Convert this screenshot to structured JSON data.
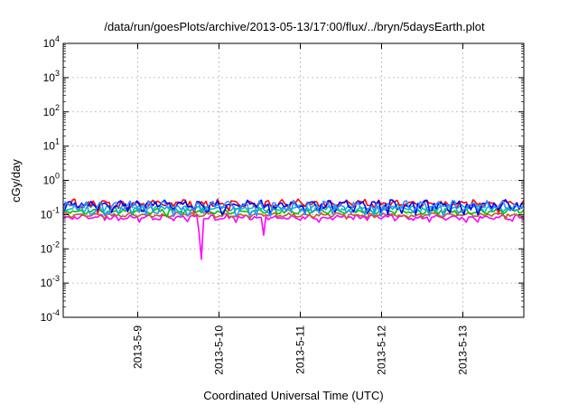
{
  "chart_data": {
    "type": "line",
    "title": "/data/run/goesPlots/archive/2013-05-13/17:00/flux/../bryn/5daysEarth.plot",
    "xlabel": "Coordinated Universal Time (UTC)",
    "ylabel": "cGy/day",
    "y_scale": "log",
    "ylim": [
      0.0001,
      10000
    ],
    "y_ticks": [
      {
        "value": 0.0001,
        "base": "10",
        "exp": "-4"
      },
      {
        "value": 0.001,
        "base": "10",
        "exp": "-3"
      },
      {
        "value": 0.01,
        "base": "10",
        "exp": "-2"
      },
      {
        "value": 0.1,
        "base": "10",
        "exp": "-1"
      },
      {
        "value": 1,
        "base": "10",
        "exp": "0"
      },
      {
        "value": 10,
        "base": "10",
        "exp": "1"
      },
      {
        "value": 100,
        "base": "10",
        "exp": "2"
      },
      {
        "value": 1000,
        "base": "10",
        "exp": "3"
      },
      {
        "value": 10000,
        "base": "10",
        "exp": "4"
      }
    ],
    "xlim": [
      "2013-05-08 02:00",
      "2013-05-13 18:00"
    ],
    "x_ticks": [
      "2013-5-9",
      "2013-5-10",
      "2013-5-11",
      "2013-5-12",
      "2013-5-13"
    ],
    "grid": true,
    "series": [
      {
        "color": "#ff00ff",
        "base": 0.085,
        "amp": 0.012,
        "dips": [
          {
            "x": "2013-05-09 18:30",
            "y": 0.005
          },
          {
            "x": "2013-05-09 18:00",
            "y": 0.03
          },
          {
            "x": "2013-05-10 13:30",
            "y": 0.025
          },
          {
            "x": "2013-05-13 01:00",
            "y": 0.06
          }
        ]
      },
      {
        "color": "#c06020",
        "base": 0.1,
        "amp": 0.012,
        "dips": []
      },
      {
        "color": "#00c000",
        "base": 0.13,
        "amp": 0.02,
        "dips": []
      },
      {
        "color": "#00c0c0",
        "base": 0.16,
        "amp": 0.03,
        "dips": []
      },
      {
        "color": "#ff0000",
        "base": 0.22,
        "amp": 0.05,
        "dips": []
      },
      {
        "color": "#0000ff",
        "base": 0.2,
        "amp": 0.06,
        "dips": []
      },
      {
        "color": "#3090ff",
        "base": 0.18,
        "amp": 0.06,
        "dips": []
      }
    ]
  }
}
